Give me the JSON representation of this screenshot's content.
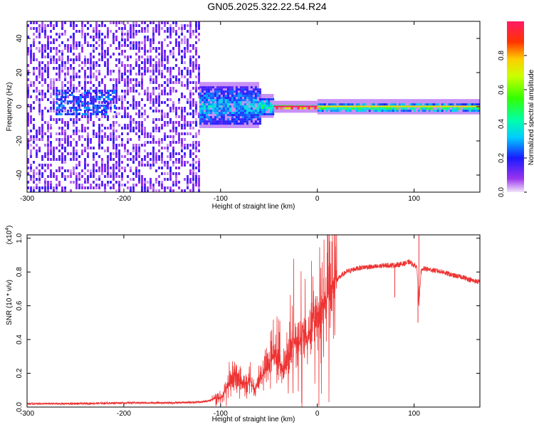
{
  "title": "GN05.2025.322.22.54.R24",
  "chart_data": [
    {
      "type": "heatmap",
      "xlabel": "Height of straight line (km)",
      "ylabel": "Frequency (Hz)",
      "xlim": [
        -300,
        168
      ],
      "ylim": [
        -50,
        50
      ],
      "x_ticks": [
        "-300",
        "-200",
        "-100",
        "0",
        "100"
      ],
      "x_tick_values": [
        -300,
        -200,
        -100,
        0,
        100
      ],
      "y_ticks": [
        "40",
        "20",
        "0",
        "-20",
        "-40"
      ],
      "y_tick_values": [
        40,
        20,
        0,
        -20,
        -40
      ],
      "colorbar": {
        "label": "Normalized spectral amplitude",
        "range": [
          0,
          1
        ],
        "ticks": [
          "0.0",
          "0.2",
          "0.4",
          "0.6",
          "0.8"
        ],
        "tick_values": [
          0.0,
          0.2,
          0.4,
          0.6,
          0.8
        ]
      },
      "regions": [
        {
          "x": [
            -300,
            -122
          ],
          "freq_band": [
            -50,
            50
          ],
          "amplitude": 0.15
        },
        {
          "x": [
            -122,
            -60
          ],
          "freq_band": [
            -10,
            12
          ],
          "amplitude": 0.35
        },
        {
          "x": [
            -60,
            -45
          ],
          "freq_band": [
            -4,
            5
          ],
          "amplitude": 0.45
        },
        {
          "x": [
            -45,
            0
          ],
          "freq_band": [
            -1,
            1
          ],
          "amplitude": 0.95
        },
        {
          "x": [
            0,
            168
          ],
          "freq_band": [
            -2,
            2
          ],
          "amplitude": 0.55
        }
      ]
    },
    {
      "type": "line",
      "xlabel": "Height of straight line (km)",
      "ylabel": "SNR (10 * v/v)",
      "multiplier_label": "(x10",
      "multiplier_exp": "4",
      "xlim": [
        -300,
        168
      ],
      "ylim": [
        0,
        1.02
      ],
      "x_ticks": [
        "-300",
        "-200",
        "-100",
        "0",
        "100"
      ],
      "x_tick_values": [
        -300,
        -200,
        -100,
        0,
        100
      ],
      "y_ticks": [
        "0.0",
        "0.2",
        "0.4",
        "0.6",
        "0.8",
        "1.0"
      ],
      "y_tick_values": [
        0.0,
        0.2,
        0.4,
        0.6,
        0.8,
        1.0
      ],
      "series": [
        {
          "color": "#ee3333",
          "x": [
            -300,
            -250,
            -200,
            -150,
            -120,
            -110,
            -105,
            -100,
            -95,
            -90,
            -85,
            -80,
            -75,
            -70,
            -65,
            -60,
            -55,
            -50,
            -45,
            -40,
            -35,
            -30,
            -25,
            -20,
            -15,
            -10,
            -5,
            0,
            5,
            10,
            15,
            20,
            25,
            30,
            40,
            50,
            60,
            70,
            80,
            90,
            95,
            100,
            103,
            105,
            107,
            110,
            120,
            130,
            140,
            150,
            160,
            168
          ],
          "y": [
            0.02,
            0.02,
            0.025,
            0.025,
            0.03,
            0.04,
            0.06,
            0.05,
            0.1,
            0.15,
            0.2,
            0.15,
            0.13,
            0.18,
            0.1,
            0.15,
            0.2,
            0.25,
            0.3,
            0.28,
            0.22,
            0.3,
            0.4,
            0.35,
            0.45,
            0.38,
            0.5,
            0.55,
            0.6,
            0.65,
            0.7,
            0.75,
            0.78,
            0.8,
            0.82,
            0.83,
            0.83,
            0.84,
            0.84,
            0.85,
            0.86,
            0.84,
            0.83,
            0.6,
            0.8,
            0.82,
            0.81,
            0.8,
            0.78,
            0.77,
            0.75,
            0.74
          ]
        }
      ]
    }
  ]
}
